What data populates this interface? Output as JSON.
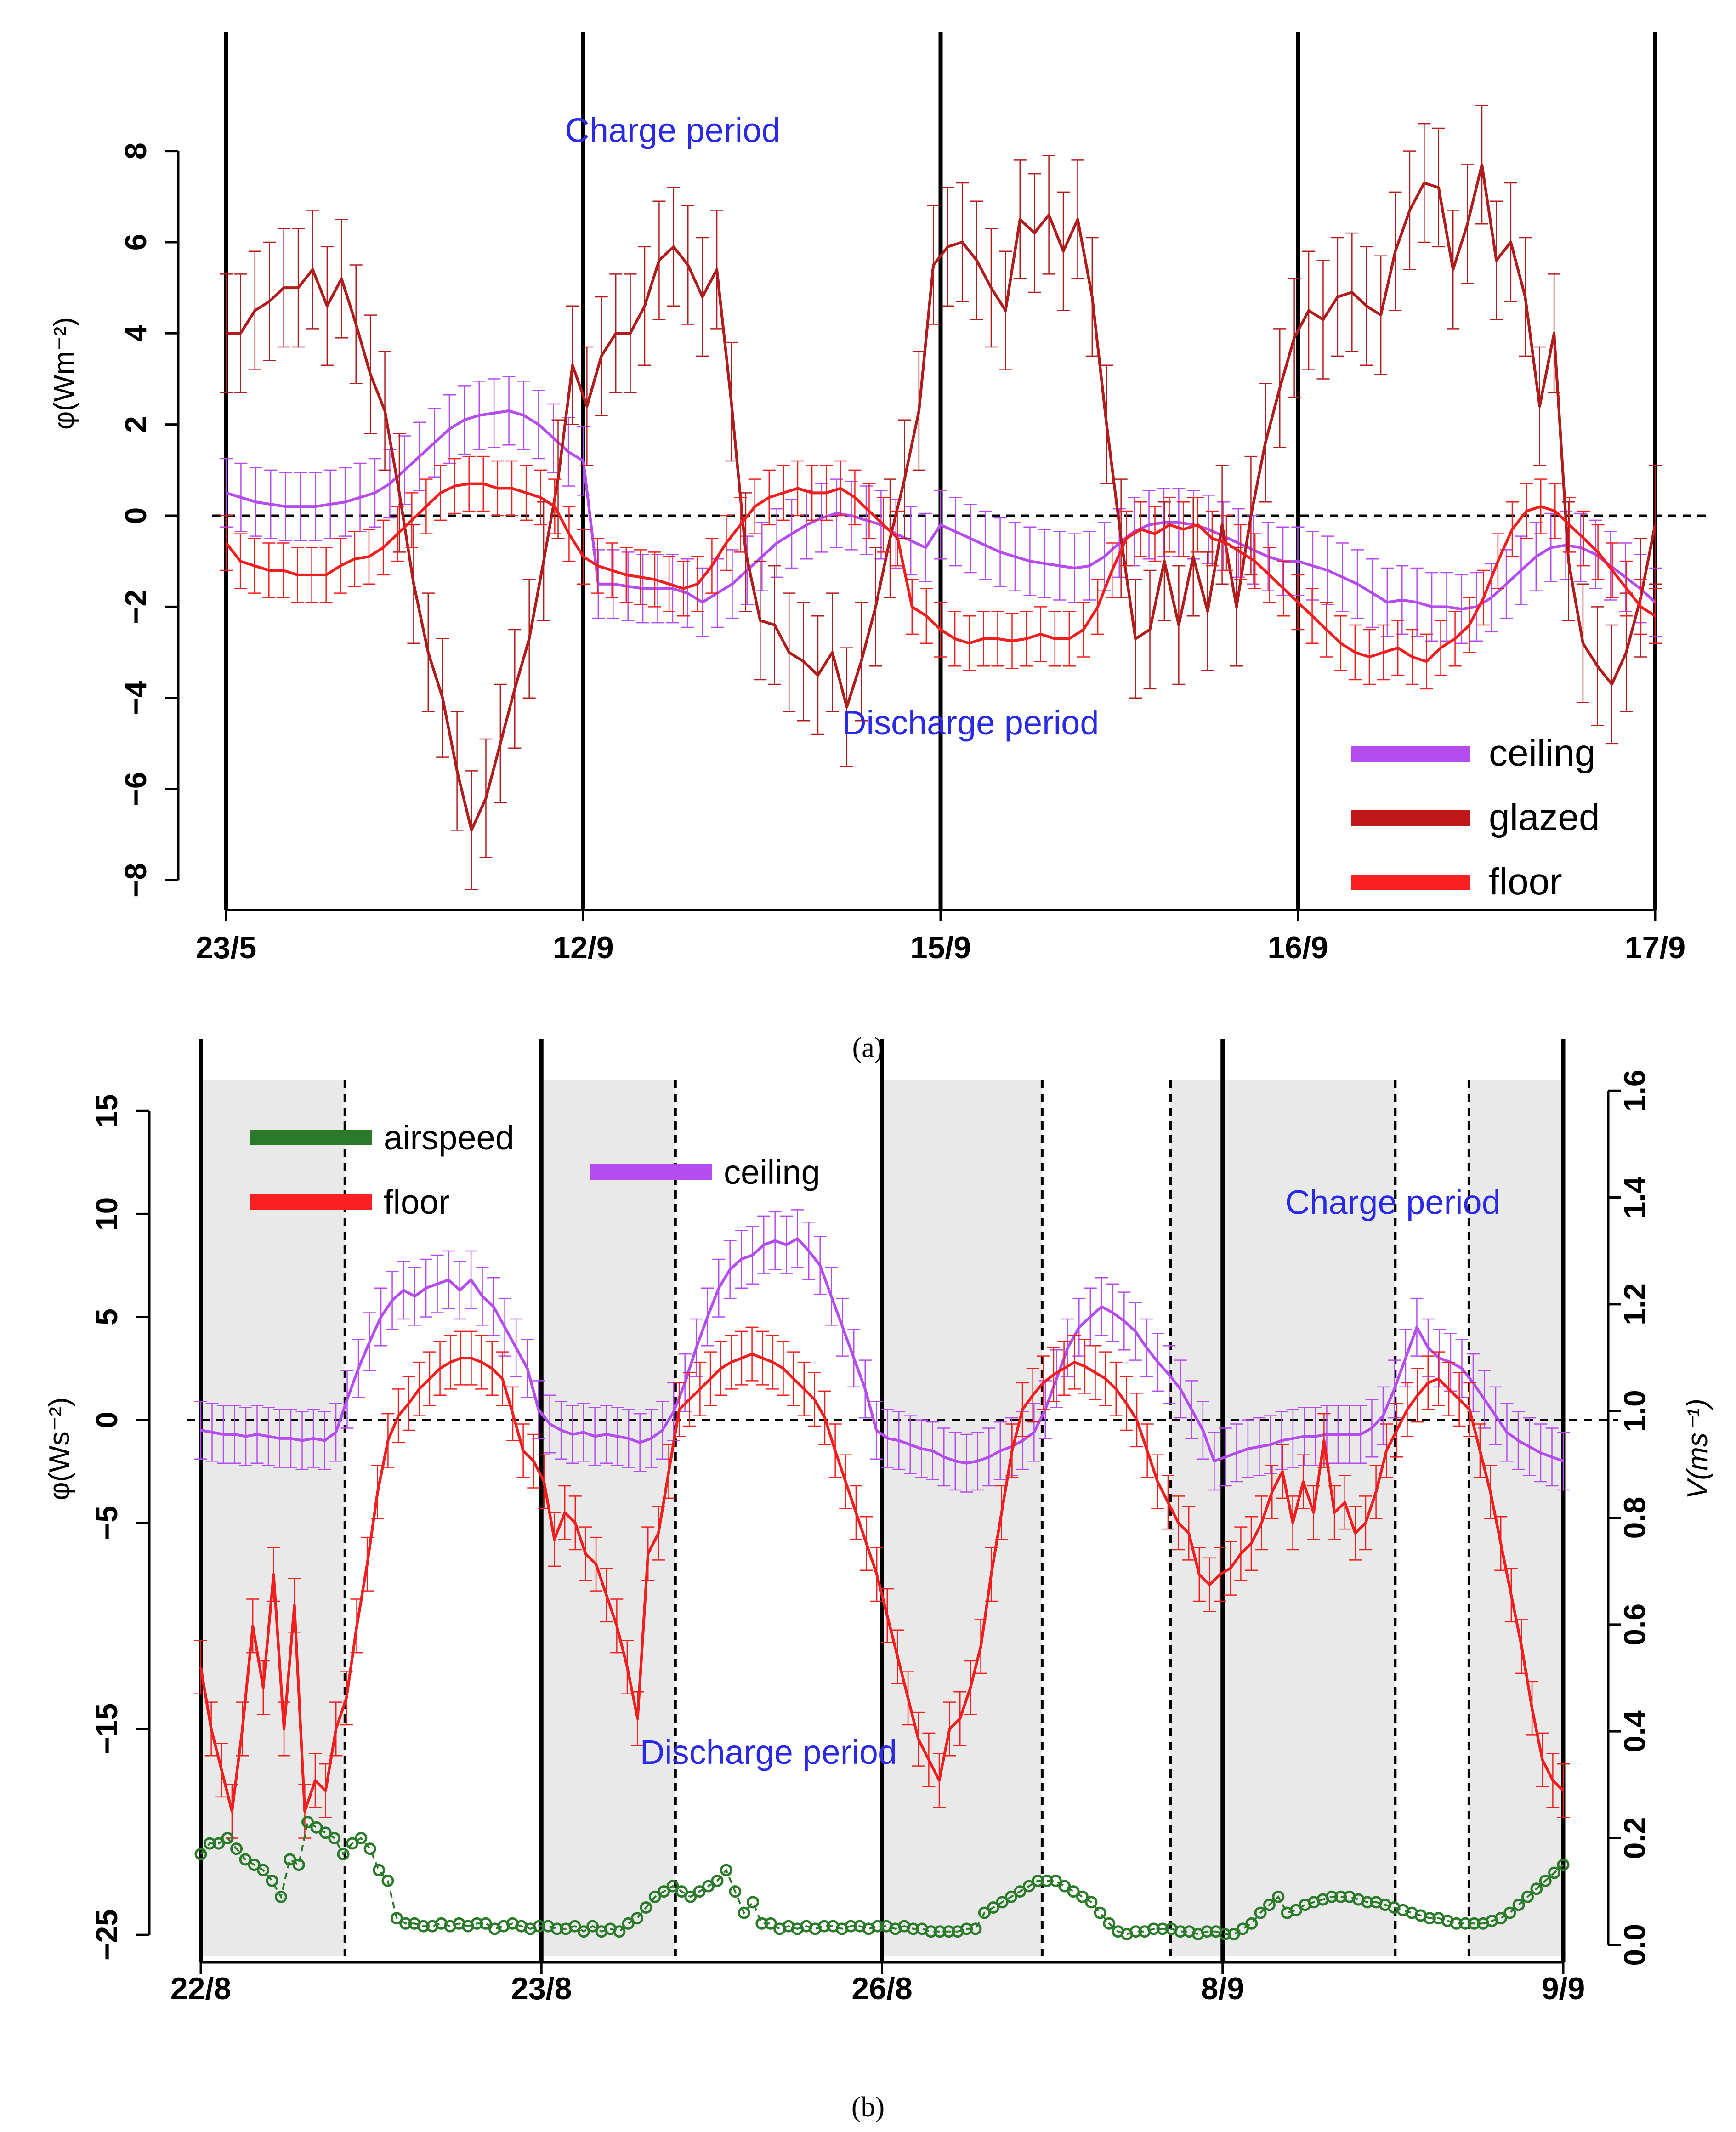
{
  "captions": {
    "a": "(a)",
    "b": "(b)"
  },
  "chart_data": [
    {
      "type": "line",
      "panel": "a",
      "ylabel": "φ(Wm⁻²)",
      "ylim": [
        -8.5,
        9.7
      ],
      "yticks": [
        -8,
        -6,
        -4,
        -2,
        0,
        2,
        4,
        6,
        8
      ],
      "xlim": [
        0,
        96
      ],
      "xticks": [
        {
          "x": 0,
          "label": "23/5"
        },
        {
          "x": 24,
          "label": "12/9"
        },
        {
          "x": 48,
          "label": "15/9"
        },
        {
          "x": 72,
          "label": "16/9"
        },
        {
          "x": 96,
          "label": "17/9"
        }
      ],
      "vlines": [
        0,
        24,
        48,
        72,
        96
      ],
      "hline": 0,
      "annotations": [
        {
          "text": "Charge period",
          "x": 30,
          "y": 8.2,
          "color": "#2a2ae6"
        },
        {
          "text": "Discharge period",
          "x": 50,
          "y": -4.8,
          "color": "#2a2ae6"
        }
      ],
      "legend": {
        "position": "bottom-right",
        "entries": [
          {
            "label": "ceiling",
            "color": "#b44cf0"
          },
          {
            "label": "glazed",
            "color": "#c01818"
          },
          {
            "label": "floor",
            "color": "#f82020"
          }
        ]
      },
      "series": [
        {
          "name": "ceiling",
          "color": "#b44cf0",
          "err": 0.75,
          "values": [
            0.5,
            0.4,
            0.3,
            0.25,
            0.2,
            0.2,
            0.2,
            0.25,
            0.3,
            0.4,
            0.5,
            0.7,
            1.0,
            1.3,
            1.6,
            1.9,
            2.1,
            2.2,
            2.25,
            2.3,
            2.2,
            2.0,
            1.7,
            1.4,
            1.2,
            -1.5,
            -1.5,
            -1.55,
            -1.6,
            -1.6,
            -1.6,
            -1.7,
            -1.9,
            -1.7,
            -1.5,
            -1.2,
            -0.9,
            -0.6,
            -0.4,
            -0.2,
            -0.05,
            0.05,
            0.0,
            -0.1,
            -0.2,
            -0.4,
            -0.55,
            -0.7,
            -0.2,
            -0.35,
            -0.5,
            -0.65,
            -0.8,
            -0.9,
            -1.0,
            -1.05,
            -1.1,
            -1.15,
            -1.1,
            -0.9,
            -0.6,
            -0.35,
            -0.2,
            -0.15,
            -0.15,
            -0.2,
            -0.3,
            -0.45,
            -0.6,
            -0.75,
            -0.9,
            -1.0,
            -1.0,
            -1.1,
            -1.2,
            -1.35,
            -1.5,
            -1.7,
            -1.9,
            -1.85,
            -1.9,
            -2.0,
            -2.0,
            -2.05,
            -2.0,
            -1.8,
            -1.5,
            -1.2,
            -0.9,
            -0.7,
            -0.65,
            -0.7,
            -0.85,
            -1.1,
            -1.35,
            -1.6,
            -1.9
          ]
        },
        {
          "name": "glazed",
          "color": "#b01c1c",
          "err": 1.3,
          "values": [
            4.0,
            4.0,
            4.5,
            4.7,
            5.0,
            5.0,
            5.4,
            4.6,
            5.2,
            4.2,
            3.1,
            2.3,
            0.5,
            -1.5,
            -3.0,
            -4.0,
            -5.6,
            -6.9,
            -6.2,
            -5.0,
            -3.8,
            -2.7,
            -1.0,
            0.8,
            3.3,
            2.4,
            3.5,
            4.0,
            4.0,
            4.6,
            5.6,
            5.9,
            5.5,
            4.8,
            5.4,
            2.5,
            -0.8,
            -2.3,
            -2.4,
            -3.0,
            -3.2,
            -3.5,
            -3.0,
            -4.2,
            -3.2,
            -2.0,
            -0.5,
            0.8,
            2.3,
            5.5,
            5.9,
            6.0,
            5.6,
            5.0,
            4.5,
            6.5,
            6.2,
            6.6,
            5.8,
            6.5,
            4.8,
            2.0,
            -0.5,
            -2.7,
            -2.5,
            -1.0,
            -2.4,
            -0.9,
            -2.1,
            -0.2,
            -2.0,
            0.0,
            1.6,
            2.8,
            3.9,
            4.5,
            4.3,
            4.8,
            4.9,
            4.6,
            4.4,
            5.8,
            6.7,
            7.3,
            7.2,
            5.4,
            6.4,
            7.7,
            5.6,
            6.0,
            4.8,
            2.4,
            4.0,
            -1.0,
            -2.8,
            -3.3,
            -3.7,
            -3.0,
            -1.8,
            -0.2
          ]
        },
        {
          "name": "floor",
          "color": "#f21e1e",
          "err": 0.6,
          "values": [
            -0.6,
            -1.0,
            -1.1,
            -1.2,
            -1.2,
            -1.3,
            -1.3,
            -1.3,
            -1.1,
            -0.95,
            -0.9,
            -0.7,
            -0.4,
            -0.1,
            0.2,
            0.5,
            0.65,
            0.7,
            0.7,
            0.6,
            0.6,
            0.5,
            0.4,
            0.2,
            -0.4,
            -0.9,
            -1.1,
            -1.2,
            -1.3,
            -1.35,
            -1.4,
            -1.5,
            -1.6,
            -1.5,
            -1.1,
            -0.6,
            -0.2,
            0.2,
            0.4,
            0.5,
            0.6,
            0.5,
            0.5,
            0.6,
            0.4,
            0.1,
            -0.2,
            -0.5,
            -2.0,
            -2.2,
            -2.5,
            -2.7,
            -2.8,
            -2.7,
            -2.7,
            -2.75,
            -2.7,
            -2.6,
            -2.7,
            -2.7,
            -2.5,
            -2.0,
            -1.2,
            -0.5,
            -0.3,
            -0.4,
            -0.2,
            -0.3,
            -0.2,
            -0.5,
            -0.6,
            -0.8,
            -1.0,
            -1.3,
            -1.6,
            -1.9,
            -2.2,
            -2.5,
            -2.8,
            -3.0,
            -3.1,
            -3.0,
            -2.9,
            -3.1,
            -3.2,
            -2.9,
            -2.7,
            -2.4,
            -1.8,
            -1.0,
            -0.3,
            0.1,
            0.2,
            0.1,
            -0.2,
            -0.5,
            -0.8,
            -1.2,
            -1.6,
            -2.0,
            -2.2
          ]
        }
      ]
    },
    {
      "type": "line",
      "panel": "b",
      "ylabel": "φ(Ws⁻²)",
      "y2label": "V(ms⁻¹)",
      "ylim": [
        -26,
        16.5
      ],
      "yticks": [
        -25,
        -15,
        -5,
        0,
        5,
        10,
        15
      ],
      "y2lim": [
        -0.02,
        1.62
      ],
      "y2ticks": [
        0.0,
        0.2,
        0.4,
        0.6,
        0.8,
        1.0,
        1.2,
        1.4,
        1.6
      ],
      "xlim": [
        0,
        120
      ],
      "xticks": [
        {
          "x": 0,
          "label": "22/8"
        },
        {
          "x": 30,
          "label": "23/8"
        },
        {
          "x": 60,
          "label": "26/8"
        },
        {
          "x": 90,
          "label": "8/9"
        },
        {
          "x": 120,
          "label": "9/9"
        }
      ],
      "vlines": [
        0,
        30,
        60,
        90,
        120
      ],
      "dashed_vlines": [
        12.7,
        41.8,
        74.1,
        85.4,
        105.2,
        111.7
      ],
      "shaded_ranges": [
        [
          0,
          12.7
        ],
        [
          30,
          41.8
        ],
        [
          60,
          74.1
        ],
        [
          85.4,
          90
        ],
        [
          90,
          105.2
        ],
        [
          111.7,
          120
        ]
      ],
      "hline": 0,
      "annotations": [
        {
          "text": "Charge period",
          "x": 105,
          "y": 10,
          "color": "#2a2ae6"
        },
        {
          "text": "Discharge period",
          "x": 50,
          "y": -16.7,
          "color": "#2a2ae6"
        }
      ],
      "legend": {
        "position": "top-left",
        "entries": [
          {
            "label": "airspeed",
            "color": "#2a7a2a"
          },
          {
            "label": "floor",
            "color": "#f82020"
          },
          {
            "label": "ceiling",
            "color": "#b44cf0"
          }
        ]
      },
      "series": [
        {
          "name": "ceiling",
          "color": "#b44cf0",
          "err": 1.4,
          "values": [
            -0.5,
            -0.6,
            -0.7,
            -0.7,
            -0.8,
            -0.7,
            -0.8,
            -0.9,
            -0.9,
            -1.0,
            -0.9,
            -1.0,
            -0.6,
            1.0,
            2.5,
            3.8,
            5.0,
            5.8,
            6.3,
            6.0,
            6.4,
            6.6,
            6.8,
            6.3,
            6.8,
            6.0,
            5.5,
            4.5,
            3.5,
            2.5,
            0.5,
            -0.2,
            -0.5,
            -0.7,
            -0.6,
            -0.8,
            -0.7,
            -0.8,
            -0.9,
            -1.1,
            -0.9,
            -0.5,
            0.4,
            1.8,
            3.5,
            5.0,
            6.4,
            7.3,
            7.8,
            8.0,
            8.5,
            8.7,
            8.5,
            8.8,
            8.2,
            7.5,
            6.0,
            4.5,
            3.0,
            1.5,
            -0.5,
            -0.9,
            -1.0,
            -1.2,
            -1.4,
            -1.5,
            -1.8,
            -2.0,
            -2.1,
            -2.0,
            -1.8,
            -1.5,
            -1.3,
            -1.0,
            -0.6,
            0.5,
            2.0,
            3.5,
            4.5,
            5.0,
            5.5,
            5.2,
            4.8,
            4.3,
            3.5,
            2.8,
            2.2,
            1.5,
            0.5,
            -0.5,
            -2.0,
            -1.8,
            -1.6,
            -1.4,
            -1.3,
            -1.2,
            -1.0,
            -0.9,
            -0.8,
            -0.8,
            -0.7,
            -0.7,
            -0.7,
            -0.7,
            -0.4,
            0.2,
            1.5,
            3.0,
            4.5,
            3.5,
            3.0,
            2.8,
            2.5,
            1.8,
            1.0,
            0.2,
            -0.6,
            -1.0,
            -1.3,
            -1.6,
            -1.8,
            -2.0
          ]
        },
        {
          "name": "floor",
          "color": "#f21e1e",
          "err": 1.3,
          "values": [
            -12.0,
            -15.0,
            -17.0,
            -19.0,
            -15.0,
            -10.0,
            -13.0,
            -7.5,
            -15.0,
            -9.0,
            -19.0,
            -17.5,
            -18.0,
            -15.0,
            -13.5,
            -10.0,
            -7.0,
            -3.5,
            -1.0,
            0.2,
            0.8,
            1.5,
            2.0,
            2.5,
            2.8,
            3.0,
            3.0,
            2.8,
            2.5,
            2.0,
            0.3,
            -1.5,
            -2.0,
            -3.0,
            -5.8,
            -4.5,
            -5.0,
            -6.5,
            -7.0,
            -8.5,
            -10.0,
            -12.0,
            -14.5,
            -6.5,
            -5.5,
            -2.5,
            0.5,
            1.0,
            1.5,
            2.0,
            2.5,
            2.8,
            3.0,
            3.2,
            3.0,
            2.8,
            2.5,
            2.0,
            1.5,
            1.0,
            0.1,
            -1.5,
            -3.0,
            -4.5,
            -6.0,
            -7.5,
            -9.5,
            -11.5,
            -13.5,
            -15.5,
            -16.5,
            -17.5,
            -15.0,
            -14.5,
            -13.0,
            -11.0,
            -7.5,
            -4.5,
            -1.5,
            0.5,
            1.2,
            1.8,
            2.2,
            2.5,
            2.8,
            2.6,
            2.3,
            2.0,
            1.5,
            0.8,
            0.0,
            -1.5,
            -3.0,
            -4.0,
            -5.0,
            -5.5,
            -7.5,
            -8.0,
            -7.5,
            -7.2,
            -6.5,
            -6.0,
            -5.0,
            -3.5,
            -2.5,
            -5.0,
            -3.0,
            -4.5,
            -1.0,
            -4.5,
            -4.0,
            -5.5,
            -5.0,
            -3.5,
            -1.5,
            -0.5,
            0.5,
            1.2,
            1.8,
            2.0,
            1.5,
            1.0,
            0.5,
            -1.5,
            -3.5,
            -6.0,
            -8.5,
            -11.0,
            -14.0,
            -16.5,
            -17.5,
            -18.0
          ]
        },
        {
          "name": "airspeed",
          "color": "#2a7a2a",
          "axis": "y2",
          "values": [
            0.17,
            0.19,
            0.19,
            0.2,
            0.18,
            0.16,
            0.15,
            0.14,
            0.12,
            0.09,
            0.16,
            0.15,
            0.23,
            0.22,
            0.21,
            0.2,
            0.17,
            0.19,
            0.2,
            0.18,
            0.14,
            0.12,
            0.05,
            0.04,
            0.04,
            0.035,
            0.035,
            0.04,
            0.035,
            0.04,
            0.035,
            0.04,
            0.04,
            0.03,
            0.035,
            0.04,
            0.035,
            0.03,
            0.035,
            0.035,
            0.03,
            0.03,
            0.035,
            0.025,
            0.035,
            0.025,
            0.03,
            0.025,
            0.04,
            0.05,
            0.07,
            0.09,
            0.1,
            0.11,
            0.1,
            0.09,
            0.1,
            0.11,
            0.12,
            0.14,
            0.1,
            0.06,
            0.08,
            0.04,
            0.04,
            0.03,
            0.035,
            0.03,
            0.035,
            0.03,
            0.035,
            0.035,
            0.03,
            0.035,
            0.035,
            0.03,
            0.035,
            0.035,
            0.03,
            0.035,
            0.03,
            0.03,
            0.025,
            0.025,
            0.025,
            0.025,
            0.03,
            0.03,
            0.06,
            0.07,
            0.08,
            0.09,
            0.1,
            0.11,
            0.12,
            0.12,
            0.12,
            0.11,
            0.1,
            0.09,
            0.08,
            0.06,
            0.04,
            0.025,
            0.02,
            0.025,
            0.025,
            0.03,
            0.03,
            0.03,
            0.025,
            0.025,
            0.02,
            0.025,
            0.025,
            0.02,
            0.02,
            0.03,
            0.04,
            0.06,
            0.075,
            0.09,
            0.06,
            0.065,
            0.075,
            0.08,
            0.085,
            0.09,
            0.09,
            0.09,
            0.085,
            0.08,
            0.08,
            0.075,
            0.07,
            0.065,
            0.06,
            0.055,
            0.05,
            0.05,
            0.045,
            0.04,
            0.04,
            0.04,
            0.04,
            0.045,
            0.05,
            0.06,
            0.075,
            0.09,
            0.105,
            0.12,
            0.135,
            0.15
          ]
        }
      ]
    }
  ]
}
